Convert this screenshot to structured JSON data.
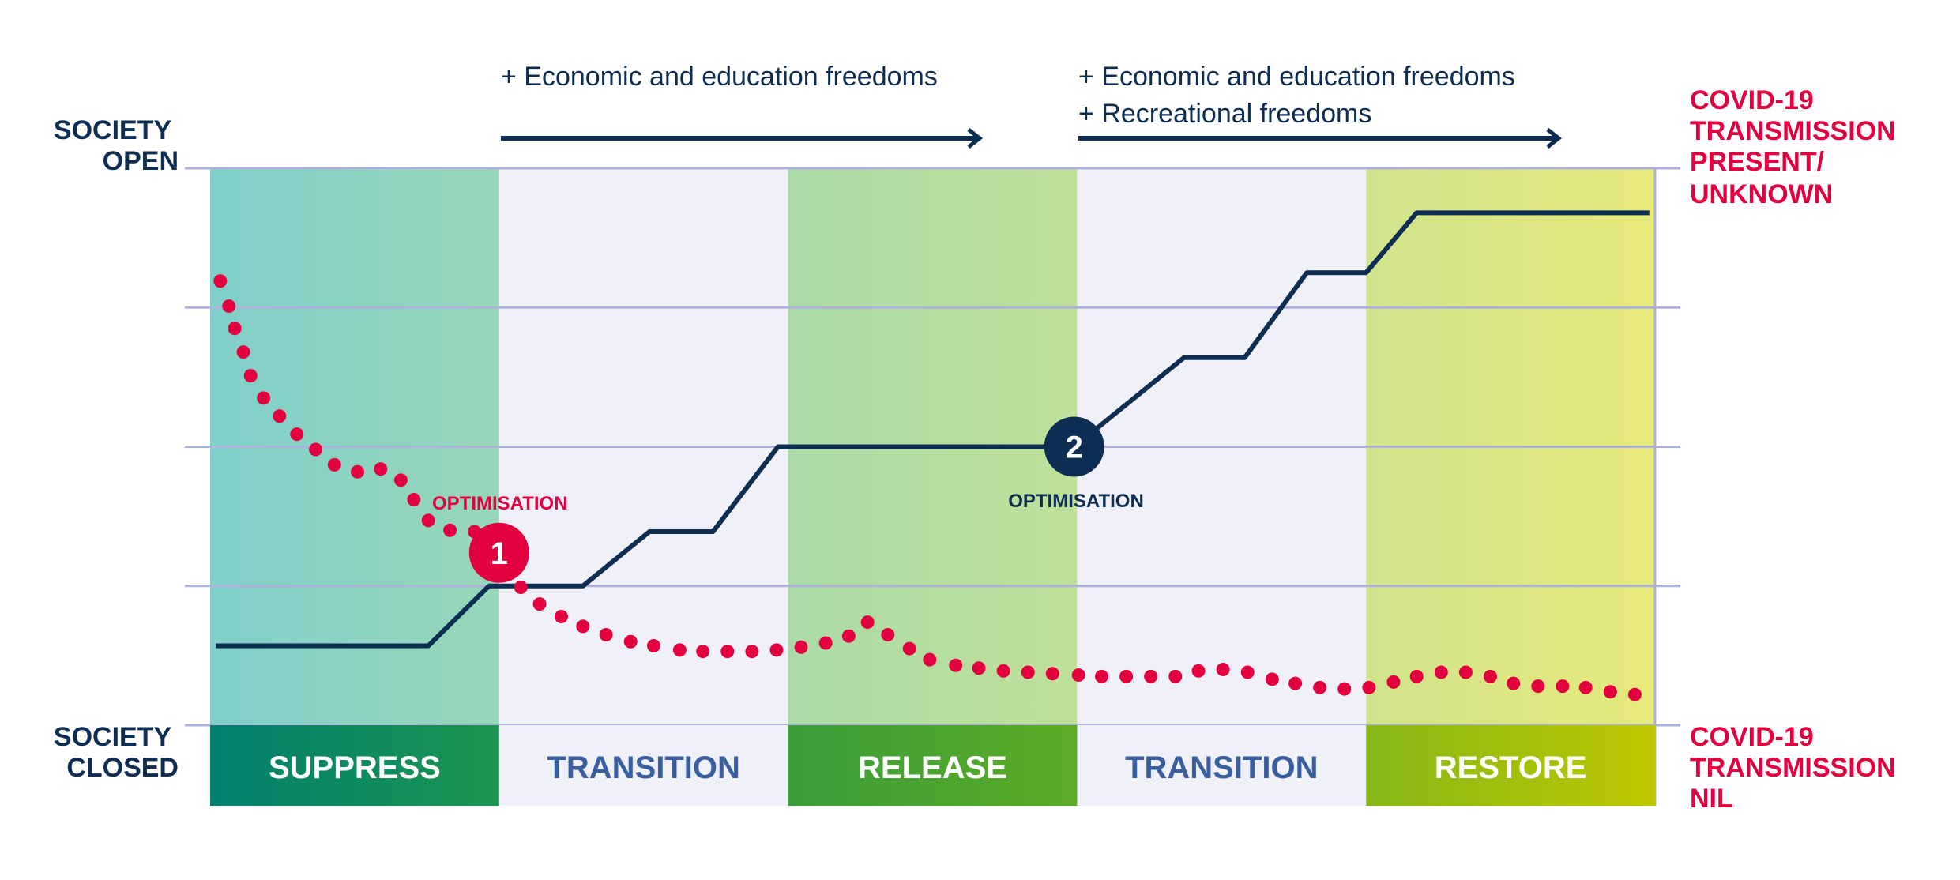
{
  "axis": {
    "top_label": [
      "SOCIETY",
      "OPEN"
    ],
    "bottom_label": [
      "SOCIETY",
      "CLOSED"
    ],
    "right_top_label": [
      "COVID-19",
      "TRANSMISSION",
      "PRESENT/",
      "UNKNOWN"
    ],
    "right_bottom_label": [
      "COVID-19",
      "TRANSMISSION",
      "NIL"
    ]
  },
  "annotations": {
    "first": [
      "+  Economic and education freedoms"
    ],
    "second": [
      "+  Economic and education freedoms",
      "+  Recreational freedoms"
    ]
  },
  "phases": [
    {
      "label": "SUPPRESS",
      "bg": [
        "#7fcfca",
        "#98d7b9"
      ],
      "band": [
        "#00806f",
        "#1b9550"
      ],
      "text": "#ffffff"
    },
    {
      "label": "TRANSITION",
      "bg": [
        "#eff0f8",
        "#eff0f8"
      ],
      "band": [
        "#eff0f8",
        "#eff0f8"
      ],
      "text": "#3a5fa0"
    },
    {
      "label": "RELEASE",
      "bg": [
        "#aadba6",
        "#c0e09a"
      ],
      "band": [
        "#3a9e3a",
        "#5dab25"
      ],
      "text": "#ffffff"
    },
    {
      "label": "TRANSITION",
      "bg": [
        "#eff0f8",
        "#eff0f8"
      ],
      "band": [
        "#eff0f8",
        "#eff0f8"
      ],
      "text": "#3a5fa0"
    },
    {
      "label": "RESTORE",
      "bg": [
        "#d1e38d",
        "#e7ea7b"
      ],
      "band": [
        "#86b817",
        "#bec700"
      ],
      "text": "#ffffff"
    }
  ],
  "markers": [
    {
      "number": "1",
      "label": "OPTIMISATION",
      "color": "#e3003f"
    },
    {
      "number": "2",
      "label": "OPTIMISATION",
      "color": "#0d2d52"
    }
  ],
  "colors": {
    "navy": "#0d2d52",
    "red": "#e3003f",
    "grid": "#aeb1da"
  },
  "chart_data": {
    "type": "line",
    "title": "",
    "xlim": [
      0,
      10
    ],
    "ylim": [
      0,
      4
    ],
    "grid": true,
    "categories": [
      "SUPPRESS",
      "TRANSITION",
      "RELEASE",
      "TRANSITION",
      "RESTORE"
    ],
    "series": [
      {
        "name": "Society openness",
        "style": "solid",
        "color": "#0d2d52",
        "points": [
          [
            0.04,
            0.57
          ],
          [
            1.51,
            0.57
          ],
          [
            1.93,
            1.0
          ],
          [
            2.58,
            1.0
          ],
          [
            3.04,
            1.39
          ],
          [
            3.48,
            1.39
          ],
          [
            3.93,
            2.0
          ],
          [
            5.98,
            2.0
          ],
          [
            6.74,
            2.64
          ],
          [
            7.16,
            2.64
          ],
          [
            7.59,
            3.25
          ],
          [
            8.0,
            3.25
          ],
          [
            8.35,
            3.68
          ],
          [
            9.96,
            3.68
          ]
        ]
      },
      {
        "name": "COVID-19 transmission",
        "style": "dotted",
        "color": "#e3003f",
        "points": [
          [
            0.07,
            3.19
          ],
          [
            0.13,
            3.01
          ],
          [
            0.17,
            2.85
          ],
          [
            0.23,
            2.68
          ],
          [
            0.28,
            2.51
          ],
          [
            0.37,
            2.35
          ],
          [
            0.48,
            2.22
          ],
          [
            0.6,
            2.09
          ],
          [
            0.73,
            1.98
          ],
          [
            0.86,
            1.87
          ],
          [
            1.02,
            1.82
          ],
          [
            1.18,
            1.84
          ],
          [
            1.32,
            1.76
          ],
          [
            1.41,
            1.62
          ],
          [
            1.51,
            1.47
          ],
          [
            1.66,
            1.4
          ],
          [
            1.83,
            1.39
          ],
          [
            2.15,
            0.99
          ],
          [
            2.28,
            0.87
          ],
          [
            2.43,
            0.78
          ],
          [
            2.58,
            0.71
          ],
          [
            2.74,
            0.65
          ],
          [
            2.91,
            0.6
          ],
          [
            3.07,
            0.57
          ],
          [
            3.25,
            0.54
          ],
          [
            3.41,
            0.53
          ],
          [
            3.58,
            0.53
          ],
          [
            3.75,
            0.53
          ],
          [
            3.92,
            0.54
          ],
          [
            4.09,
            0.56
          ],
          [
            4.26,
            0.59
          ],
          [
            4.42,
            0.64
          ],
          [
            4.55,
            0.74
          ],
          [
            4.69,
            0.65
          ],
          [
            4.84,
            0.55
          ],
          [
            4.98,
            0.47
          ],
          [
            5.16,
            0.43
          ],
          [
            5.32,
            0.41
          ],
          [
            5.49,
            0.39
          ],
          [
            5.66,
            0.38
          ],
          [
            5.83,
            0.37
          ],
          [
            6.01,
            0.36
          ],
          [
            6.17,
            0.35
          ],
          [
            6.34,
            0.35
          ],
          [
            6.51,
            0.35
          ],
          [
            6.68,
            0.35
          ],
          [
            6.84,
            0.39
          ],
          [
            7.01,
            0.4
          ],
          [
            7.18,
            0.38
          ],
          [
            7.35,
            0.33
          ],
          [
            7.51,
            0.3
          ],
          [
            7.68,
            0.27
          ],
          [
            7.85,
            0.26
          ],
          [
            8.02,
            0.27
          ],
          [
            8.19,
            0.31
          ],
          [
            8.35,
            0.35
          ],
          [
            8.52,
            0.38
          ],
          [
            8.69,
            0.38
          ],
          [
            8.86,
            0.35
          ],
          [
            9.02,
            0.3
          ],
          [
            9.19,
            0.28
          ],
          [
            9.36,
            0.28
          ],
          [
            9.52,
            0.27
          ],
          [
            9.69,
            0.24
          ],
          [
            9.86,
            0.22
          ]
        ]
      }
    ],
    "marker_points": [
      [
        2.0,
        1.0
      ],
      [
        5.98,
        2.0
      ]
    ]
  }
}
